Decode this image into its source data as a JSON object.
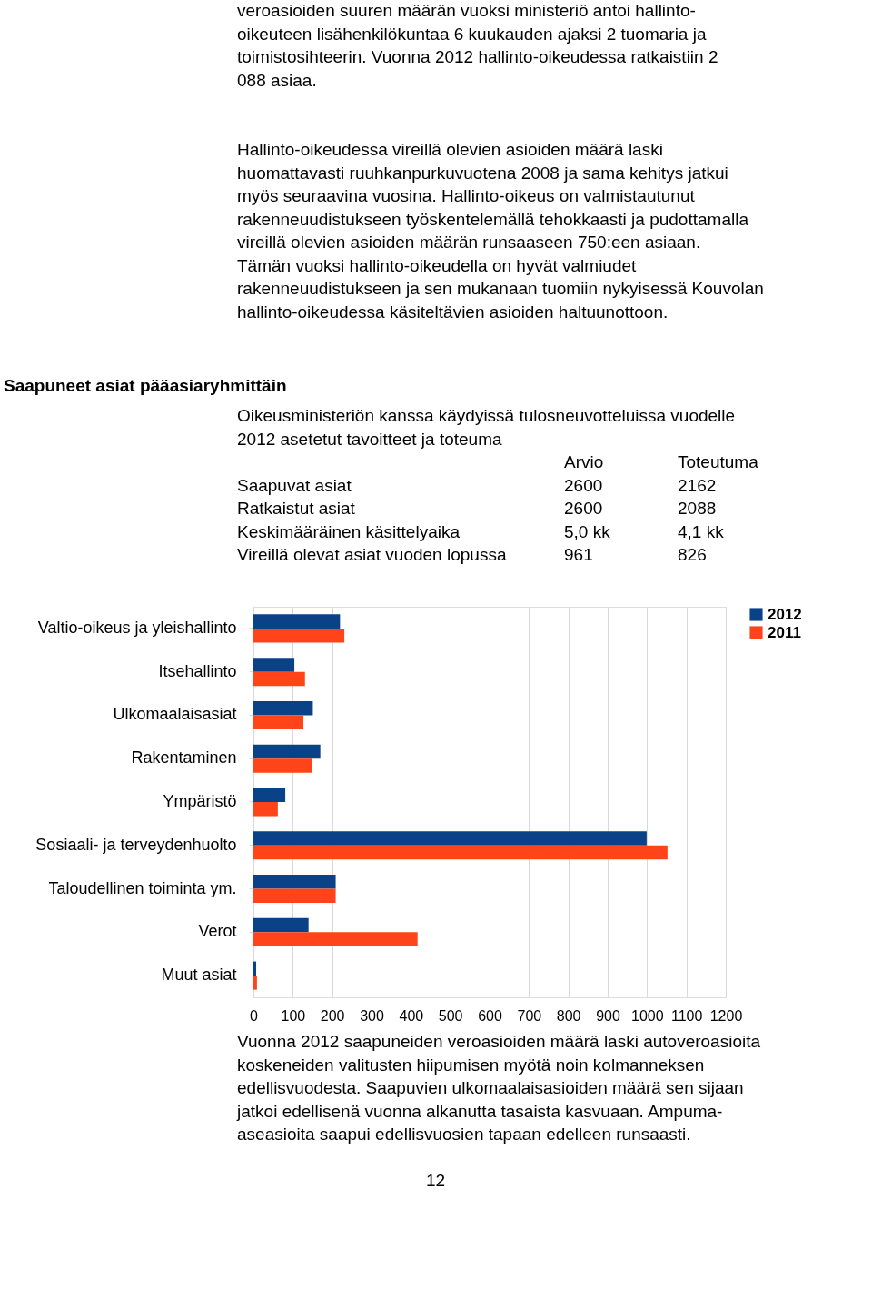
{
  "chart_data": {
    "type": "bar",
    "orientation": "horizontal",
    "title": "Saapuneet asiat pääasiaryhmittäin",
    "categories": [
      "Valtio-oikeus ja yleishallinto",
      "Itsehallinto",
      "Ulkomaalaisasiat",
      "Rakentaminen",
      "Ympäristö",
      "Sosiaali- ja terveydenhuolto",
      "Taloudellinen toiminta ym.",
      "Verot",
      "Muut asiat"
    ],
    "series": [
      {
        "name": "2012",
        "color": "#0a4287",
        "values": [
          220,
          104,
          151,
          170,
          81,
          999,
          209,
          140,
          7
        ]
      },
      {
        "name": "2011",
        "color": "#ff4419",
        "values": [
          231,
          131,
          127,
          149,
          62,
          1052,
          209,
          417,
          9
        ]
      }
    ],
    "xlim": [
      0,
      1200
    ],
    "xticks": [
      0,
      100,
      200,
      300,
      400,
      500,
      600,
      700,
      800,
      900,
      1000,
      1100,
      1200
    ],
    "grid": "x",
    "legend": "right",
    "annotations": [
      "veroasioiden suuren määrän vuoksi ministeriö antoi hallinto-oikeuteen lisähenkilökuntaa 6 kuukauden ajaksi 2 tuomaria ja toimistosihteerin. Vuonna 2012 hallinto-oikeudessa ratkaistiin 2 088 asiaa.",
      "Hallinto-oikeudessa vireillä olevien asioiden määrä laski huomattavasti ruuhkanpurkuvuotena 2008 ja sama kehitys jatkui myös seuraavina vuosina. Hallinto-oikeus on valmistautunut rakenneuudistukseen työskentelemällä tehokkaasti ja pudottamalla vireillä olevien asioiden määrän runsaaseen 750:een asiaan. Tämän vuoksi hallinto-oikeudella on hyvät valmiudet rakenneuudistukseen ja sen mukanaan tuomiin nykyisessä Kouvolan hallinto-oikeudessa käsiteltävien asioiden haltuunottoon.",
      "Oikeusministeriön kanssa käydyissä tulosneuvotteluissa vuodelle 2012 asetetut tavoitteet ja toteuma",
      "\tArvio\tToteutuma",
      "Saapuvat asiat\t2600\t2162",
      "Ratkaistut asiat\t2600\t2088",
      "Keskimääräinen käsittelyaika\t5,0 kk\t4,1 kk",
      "Vireillä olevat asiat vuoden lopussa\t961\t826",
      "Vuonna 2012 saapuneiden veroasioiden määrä laski autoveroasioita koskeneiden valitusten hiipumisen myötä noin kolmanneksen edellisvuodesta. Saapuvien ulkomaalaisasioiden määrä sen sijaan jatkoi edellisenä vuonna alkanutta tasaista kasvuaan. Ampuma-aseasioita saapui edellisvuosien tapaan edelleen runsaasti.",
      "12"
    ]
  }
}
